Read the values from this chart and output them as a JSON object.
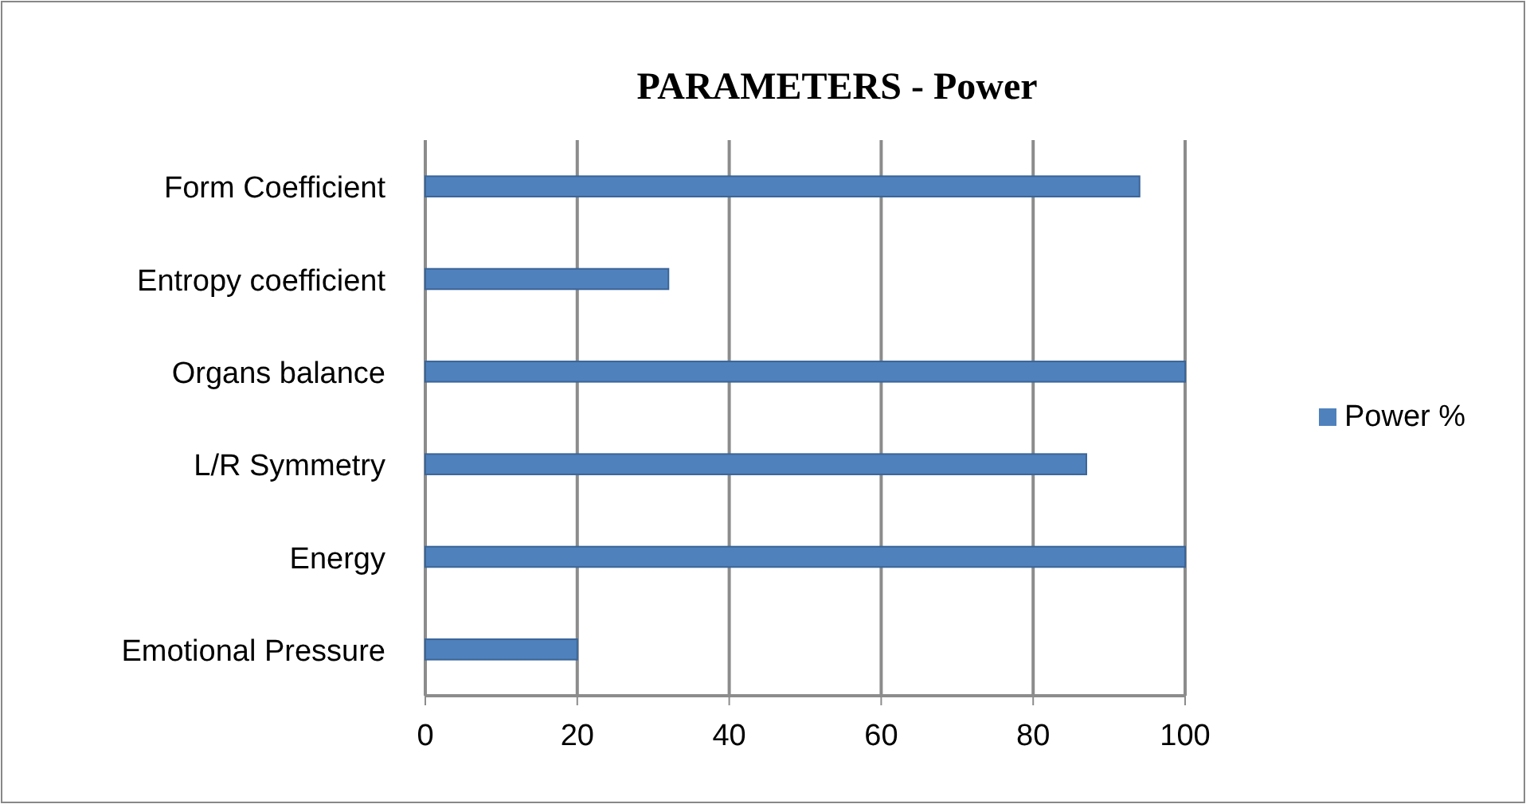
{
  "chart_data": {
    "type": "bar",
    "orientation": "horizontal",
    "title": "PARAMETERS - Power",
    "categories": [
      "Form Coefficient",
      "Entropy coefficient",
      "Organs balance",
      "L/R Symmetry",
      "Energy",
      "Emotional Pressure"
    ],
    "series": [
      {
        "name": "Power %",
        "color": "#4f81bd",
        "values": [
          94,
          32,
          100,
          87,
          100,
          20
        ]
      }
    ],
    "xlim": [
      0,
      100
    ],
    "xticks": [
      0,
      20,
      40,
      60,
      80,
      100
    ],
    "grid": "x",
    "legend": "right"
  }
}
